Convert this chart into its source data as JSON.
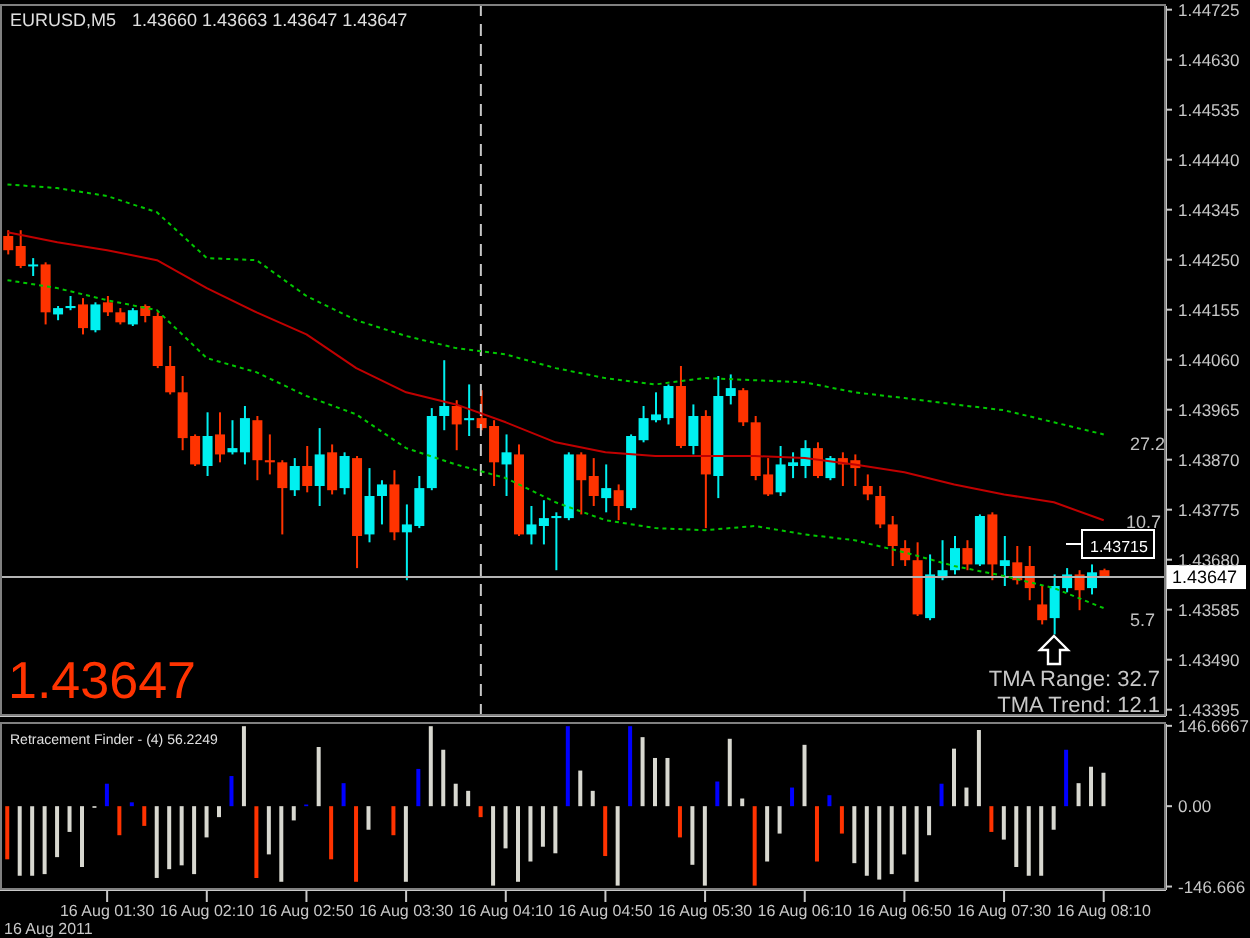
{
  "chart_data": [
    {
      "type": "candlestick",
      "title": "EURUSD,M5",
      "subtitle": "1.43660 1.43663 1.43647 1.43647",
      "x": [
        "2011-08-16T00:50",
        "2011-08-16T00:55",
        "2011-08-16T01:00",
        "2011-08-16T01:05",
        "2011-08-16T01:10",
        "2011-08-16T01:15",
        "2011-08-16T01:20",
        "2011-08-16T01:25",
        "2011-08-16T01:30",
        "2011-08-16T01:35",
        "2011-08-16T01:40",
        "2011-08-16T01:45",
        "2011-08-16T01:50",
        "2011-08-16T01:55",
        "2011-08-16T02:00",
        "2011-08-16T02:05",
        "2011-08-16T02:10",
        "2011-08-16T02:15",
        "2011-08-16T02:20",
        "2011-08-16T02:25",
        "2011-08-16T02:30",
        "2011-08-16T02:35",
        "2011-08-16T02:40",
        "2011-08-16T02:45",
        "2011-08-16T02:50",
        "2011-08-16T02:55",
        "2011-08-16T03:00",
        "2011-08-16T03:05",
        "2011-08-16T03:10",
        "2011-08-16T03:15",
        "2011-08-16T03:20",
        "2011-08-16T03:25",
        "2011-08-16T03:30",
        "2011-08-16T03:35",
        "2011-08-16T03:40",
        "2011-08-16T03:45",
        "2011-08-16T03:50",
        "2011-08-16T03:55",
        "2011-08-16T04:00",
        "2011-08-16T04:05",
        "2011-08-16T04:10",
        "2011-08-16T04:15",
        "2011-08-16T04:20",
        "2011-08-16T04:25",
        "2011-08-16T04:30",
        "2011-08-16T04:35",
        "2011-08-16T04:40",
        "2011-08-16T04:45",
        "2011-08-16T04:50",
        "2011-08-16T04:55",
        "2011-08-16T05:00",
        "2011-08-16T05:05",
        "2011-08-16T05:10",
        "2011-08-16T05:15",
        "2011-08-16T05:20",
        "2011-08-16T05:25",
        "2011-08-16T05:30",
        "2011-08-16T05:35",
        "2011-08-16T05:40",
        "2011-08-16T05:45",
        "2011-08-16T05:50",
        "2011-08-16T05:55",
        "2011-08-16T06:00",
        "2011-08-16T06:05",
        "2011-08-16T06:10",
        "2011-08-16T06:15",
        "2011-08-16T06:20",
        "2011-08-16T06:25",
        "2011-08-16T06:30",
        "2011-08-16T06:35",
        "2011-08-16T06:40",
        "2011-08-16T06:45",
        "2011-08-16T06:50",
        "2011-08-16T06:55",
        "2011-08-16T07:00",
        "2011-08-16T07:05",
        "2011-08-16T07:10",
        "2011-08-16T07:15",
        "2011-08-16T07:20",
        "2011-08-16T07:25",
        "2011-08-16T07:30",
        "2011-08-16T07:35",
        "2011-08-16T07:40",
        "2011-08-16T07:45",
        "2011-08-16T07:50",
        "2011-08-16T07:55",
        "2011-08-16T08:00",
        "2011-08-16T08:05",
        "2011-08-16T08:10"
      ],
      "ohlc": [
        [
          1.44295,
          1.44306,
          1.4426,
          1.44268
        ],
        [
          1.44276,
          1.44306,
          1.44234,
          1.44238
        ],
        [
          1.44238,
          1.44253,
          1.44219,
          1.44241
        ],
        [
          1.44241,
          1.44245,
          1.44127,
          1.4415
        ],
        [
          1.44146,
          1.44162,
          1.44135,
          1.44158
        ],
        [
          1.44158,
          1.44181,
          1.44154,
          1.44162
        ],
        [
          1.44165,
          1.44177,
          1.44108,
          1.4412
        ],
        [
          1.44116,
          1.44169,
          1.44112,
          1.44165
        ],
        [
          1.44169,
          1.44181,
          1.44143,
          1.4415
        ],
        [
          1.4415,
          1.44158,
          1.44127,
          1.44131
        ],
        [
          1.44127,
          1.44158,
          1.44124,
          1.44154
        ],
        [
          1.44162,
          1.44165,
          1.44131,
          1.44143
        ],
        [
          1.44143,
          1.4415,
          1.44044,
          1.44048
        ],
        [
          1.44048,
          1.44086,
          1.43994,
          1.43998
        ],
        [
          1.43998,
          1.44029,
          1.43888,
          1.43911
        ],
        [
          1.43915,
          1.43918,
          1.43858,
          1.43861
        ],
        [
          1.43858,
          1.4396,
          1.43839,
          1.43915
        ],
        [
          1.43918,
          1.4396,
          1.43865,
          1.4388
        ],
        [
          1.43884,
          1.43945,
          1.4388,
          1.43892
        ],
        [
          1.43884,
          1.43972,
          1.43861,
          1.43949
        ],
        [
          1.43945,
          1.43953,
          1.43831,
          1.43869
        ],
        [
          1.43869,
          1.43918,
          1.43842,
          1.43865
        ],
        [
          1.43865,
          1.43869,
          1.43728,
          1.43816
        ],
        [
          1.43812,
          1.43873,
          1.43801,
          1.43858
        ],
        [
          1.43858,
          1.43896,
          1.43808,
          1.4382
        ],
        [
          1.4382,
          1.4393,
          1.43782,
          1.4388
        ],
        [
          1.43884,
          1.43899,
          1.43804,
          1.43812
        ],
        [
          1.43816,
          1.43884,
          1.43804,
          1.43877
        ],
        [
          1.43873,
          1.43877,
          1.43664,
          1.43725
        ],
        [
          1.43728,
          1.43854,
          1.43713,
          1.43801
        ],
        [
          1.43801,
          1.43831,
          1.43747,
          1.43823
        ],
        [
          1.43823,
          1.4385,
          1.43717,
          1.43732
        ],
        [
          1.43732,
          1.43785,
          1.43641,
          1.43747
        ],
        [
          1.43744,
          1.43839,
          1.4374,
          1.43816
        ],
        [
          1.43816,
          1.43968,
          1.43812,
          1.43953
        ],
        [
          1.43953,
          1.44059,
          1.43926,
          1.43972
        ],
        [
          1.43972,
          1.43983,
          1.43888,
          1.43937
        ],
        [
          1.43945,
          1.44013,
          1.43915,
          1.43949
        ],
        [
          1.43949,
          1.44002,
          1.43926,
          1.4393
        ],
        [
          1.43934,
          1.43945,
          1.4382,
          1.43865
        ],
        [
          1.43861,
          1.43918,
          1.43801,
          1.43884
        ],
        [
          1.4388,
          1.43899,
          1.43725,
          1.43728
        ],
        [
          1.43728,
          1.43782,
          1.43709,
          1.43747
        ],
        [
          1.43744,
          1.43793,
          1.43709,
          1.43759
        ],
        [
          1.43759,
          1.4377,
          1.4366,
          1.43763
        ],
        [
          1.43759,
          1.43884,
          1.43755,
          1.4388
        ],
        [
          1.4388,
          1.43884,
          1.43766,
          1.43831
        ],
        [
          1.43839,
          1.43873,
          1.43782,
          1.43801
        ],
        [
          1.43797,
          1.43861,
          1.4377,
          1.43816
        ],
        [
          1.43812,
          1.43823,
          1.43755,
          1.43782
        ],
        [
          1.43778,
          1.43918,
          1.43774,
          1.43915
        ],
        [
          1.43907,
          1.43972,
          1.43903,
          1.43949
        ],
        [
          1.43945,
          1.43998,
          1.43941,
          1.43956
        ],
        [
          1.43949,
          1.44013,
          1.43937,
          1.4401
        ],
        [
          1.4401,
          1.44048,
          1.43892,
          1.43896
        ],
        [
          1.43896,
          1.43975,
          1.4388,
          1.43953
        ],
        [
          1.43953,
          1.43964,
          1.4374,
          1.43842
        ],
        [
          1.43839,
          1.44029,
          1.43797,
          1.43991
        ],
        [
          1.43991,
          1.44032,
          1.43975,
          1.44006
        ],
        [
          1.44002,
          1.44006,
          1.43934,
          1.43941
        ],
        [
          1.43941,
          1.43953,
          1.43831,
          1.43839
        ],
        [
          1.43842,
          1.43873,
          1.43801,
          1.43804
        ],
        [
          1.43808,
          1.43896,
          1.43801,
          1.43861
        ],
        [
          1.43858,
          1.43884,
          1.43835,
          1.43865
        ],
        [
          1.43858,
          1.43907,
          1.43835,
          1.43892
        ],
        [
          1.43892,
          1.43903,
          1.43835,
          1.43839
        ],
        [
          1.43835,
          1.43877,
          1.43831,
          1.43873
        ],
        [
          1.43873,
          1.43884,
          1.4382,
          1.43861
        ],
        [
          1.43869,
          1.4388,
          1.4382,
          1.43854
        ],
        [
          1.4382,
          1.43842,
          1.43793,
          1.43804
        ],
        [
          1.43801,
          1.4382,
          1.4374,
          1.43747
        ],
        [
          1.43747,
          1.43763,
          1.43668,
          1.43706
        ],
        [
          1.43702,
          1.43717,
          1.43668,
          1.43679
        ],
        [
          1.43679,
          1.43713,
          1.43573,
          1.43576
        ],
        [
          1.43569,
          1.4369,
          1.43565,
          1.43652
        ],
        [
          1.43645,
          1.43717,
          1.43641,
          1.4366
        ],
        [
          1.4366,
          1.43725,
          1.43652,
          1.43702
        ],
        [
          1.43702,
          1.43717,
          1.4366,
          1.43671
        ],
        [
          1.43671,
          1.43766,
          1.43668,
          1.43763
        ],
        [
          1.43766,
          1.4377,
          1.43641,
          1.43671
        ],
        [
          1.43668,
          1.43725,
          1.4363,
          1.43679
        ],
        [
          1.43675,
          1.43706,
          1.43633,
          1.43641
        ],
        [
          1.43668,
          1.43706,
          1.43603,
          1.43626
        ],
        [
          1.43595,
          1.4363,
          1.43557,
          1.43565
        ],
        [
          1.43569,
          1.43652,
          1.43538,
          1.4363
        ],
        [
          1.43626,
          1.43664,
          1.43618,
          1.43652
        ],
        [
          1.43652,
          1.4366,
          1.43584,
          1.43622
        ],
        [
          1.43626,
          1.43671,
          1.43614,
          1.43656
        ],
        [
          1.4366,
          1.43663,
          1.43647,
          1.43647
        ]
      ],
      "colors": [
        "#ff3300",
        "#ff3300",
        "#00f0f0",
        "#ff3300",
        "#00f0f0",
        "#00f0f0",
        "#ff3300",
        "#00f0f0",
        "#ff3300",
        "#ff3300",
        "#00f0f0",
        "#ff3300",
        "#ff3300",
        "#ff3300",
        "#ff3300",
        "#ff3300",
        "#00f0f0",
        "#ff3300",
        "#00f0f0",
        "#00f0f0",
        "#ff3300",
        "#ff3300",
        "#ff3300",
        "#00f0f0",
        "#ff3300",
        "#00f0f0",
        "#ff3300",
        "#00f0f0",
        "#ff3300",
        "#00f0f0",
        "#00f0f0",
        "#ff3300",
        "#00f0f0",
        "#00f0f0",
        "#00f0f0",
        "#00f0f0",
        "#ff3300",
        "#00f0f0",
        "#ff3300",
        "#ff3300",
        "#00f0f0",
        "#ff3300",
        "#00f0f0",
        "#00f0f0",
        "#00f0f0",
        "#00f0f0",
        "#ff3300",
        "#ff3300",
        "#00f0f0",
        "#ff3300",
        "#00f0f0",
        "#00f0f0",
        "#00f0f0",
        "#00f0f0",
        "#ff3300",
        "#00f0f0",
        "#ff3300",
        "#00f0f0",
        "#00f0f0",
        "#ff3300",
        "#ff3300",
        "#ff3300",
        "#00f0f0",
        "#00f0f0",
        "#00f0f0",
        "#ff3300",
        "#00f0f0",
        "#ff3300",
        "#ff3300",
        "#ff3300",
        "#ff3300",
        "#ff3300",
        "#ff3300",
        "#ff3300",
        "#00f0f0",
        "#00f0f0",
        "#00f0f0",
        "#ff3300",
        "#00f0f0",
        "#ff3300",
        "#00f0f0",
        "#ff3300",
        "#ff3300",
        "#ff3300",
        "#00f0f0",
        "#00f0f0",
        "#ff3300",
        "#00f0f0",
        "#ff3300"
      ],
      "series": [
        {
          "type": "line",
          "color": "#c00000",
          "line_style": "solid",
          "x": [
            "2011-08-16T00:50",
            "2011-08-16T01:10",
            "2011-08-16T01:30",
            "2011-08-16T01:50",
            "2011-08-16T02:10",
            "2011-08-16T02:30",
            "2011-08-16T02:50",
            "2011-08-16T03:10",
            "2011-08-16T03:30",
            "2011-08-16T03:50",
            "2011-08-16T04:10",
            "2011-08-16T04:30",
            "2011-08-16T04:50",
            "2011-08-16T05:10",
            "2011-08-16T05:30",
            "2011-08-16T05:50",
            "2011-08-16T06:10",
            "2011-08-16T06:30",
            "2011-08-16T06:50",
            "2011-08-16T07:10",
            "2011-08-16T07:30",
            "2011-08-16T07:50",
            "2011-08-16T08:10"
          ],
          "values": [
            1.44302,
            1.44283,
            1.44268,
            1.44249,
            1.44196,
            1.4415,
            1.44108,
            1.44044,
            1.43998,
            1.43975,
            1.43941,
            1.43903,
            1.43884,
            1.43877,
            1.43877,
            1.43877,
            1.43873,
            1.43861,
            1.43846,
            1.43823,
            1.43804,
            1.43789,
            1.43755
          ]
        },
        {
          "type": "line",
          "color": "#00c800",
          "line_style": "dotted",
          "x": [
            "2011-08-16T00:50",
            "2011-08-16T01:10",
            "2011-08-16T01:30",
            "2011-08-16T01:50",
            "2011-08-16T02:10",
            "2011-08-16T02:30",
            "2011-08-16T02:50",
            "2011-08-16T03:10",
            "2011-08-16T03:30",
            "2011-08-16T03:50",
            "2011-08-16T04:10",
            "2011-08-16T04:30",
            "2011-08-16T04:50",
            "2011-08-16T05:10",
            "2011-08-16T05:30",
            "2011-08-16T05:50",
            "2011-08-16T06:10",
            "2011-08-16T06:30",
            "2011-08-16T06:50",
            "2011-08-16T07:10",
            "2011-08-16T07:30",
            "2011-08-16T07:50",
            "2011-08-16T08:10"
          ],
          "values": [
            1.44393,
            1.44386,
            1.44371,
            1.4434,
            1.44253,
            1.44249,
            1.44181,
            1.44135,
            1.44105,
            1.44082,
            1.4407,
            1.44044,
            1.44025,
            1.44013,
            1.44025,
            1.44021,
            1.44017,
            1.43998,
            1.43987,
            1.43975,
            1.43964,
            1.43941,
            1.43918
          ]
        },
        {
          "type": "line",
          "color": "#00c800",
          "line_style": "dotted",
          "x": [
            "2011-08-16T00:50",
            "2011-08-16T01:10",
            "2011-08-16T01:30",
            "2011-08-16T01:50",
            "2011-08-16T02:10",
            "2011-08-16T02:30",
            "2011-08-16T02:50",
            "2011-08-16T03:10",
            "2011-08-16T03:30",
            "2011-08-16T03:50",
            "2011-08-16T04:10",
            "2011-08-16T04:30",
            "2011-08-16T04:50",
            "2011-08-16T05:10",
            "2011-08-16T05:30",
            "2011-08-16T05:50",
            "2011-08-16T06:10",
            "2011-08-16T06:30",
            "2011-08-16T06:50",
            "2011-08-16T07:10",
            "2011-08-16T07:30",
            "2011-08-16T07:50",
            "2011-08-16T08:10"
          ],
          "values": [
            1.44211,
            1.44196,
            1.44173,
            1.44154,
            1.44063,
            1.44036,
            1.43991,
            1.43956,
            1.43892,
            1.43861,
            1.43835,
            1.43789,
            1.43755,
            1.4374,
            1.43736,
            1.43744,
            1.43728,
            1.43717,
            1.43694,
            1.43668,
            1.43649,
            1.43626,
            1.43588
          ]
        }
      ],
      "xlim": [
        "2011-08-16T00:47",
        "2011-08-16T08:35"
      ],
      "ylim": [
        1.43383,
        1.44732
      ],
      "yticks": [
        1.44725,
        {
          "value": 1.4463,
          "label": "1.44630"
        },
        1.44535,
        {
          "value": 1.4444,
          "label": "1.44440"
        },
        1.44345,
        {
          "value": 1.4425,
          "label": "1.44250"
        },
        1.44155,
        {
          "value": 1.4406,
          "label": "1.44060"
        },
        1.43965,
        {
          "value": 1.4387,
          "label": "1.43870"
        },
        1.43775,
        {
          "value": 1.4368,
          "label": "1.43680"
        },
        1.43585,
        {
          "value": 1.4349,
          "label": "1.43490"
        },
        1.43395
      ],
      "tick_labels": "y",
      "ref_lines": [
        {
          "axis": "y",
          "value": 1.43647,
          "label": "1.43647",
          "color": "#b4b4b4",
          "line_style": "solid"
        },
        {
          "axis": "x",
          "value": "2011-08-16T04:00",
          "color": "#c8c8c8",
          "line_style": "dashed"
        }
      ],
      "annotations": [
        "27.2",
        "10.7",
        "5.7",
        "1.43715",
        "1.43647",
        "TMA Range: 32.7",
        "TMA Trend: 12.1"
      ]
    },
    {
      "type": "bar",
      "title": "Retracement Finder - (4) 56.2249",
      "x": [
        "2011-08-16T00:50",
        "2011-08-16T00:55",
        "2011-08-16T01:00",
        "2011-08-16T01:05",
        "2011-08-16T01:10",
        "2011-08-16T01:15",
        "2011-08-16T01:20",
        "2011-08-16T01:25",
        "2011-08-16T01:30",
        "2011-08-16T01:35",
        "2011-08-16T01:40",
        "2011-08-16T01:45",
        "2011-08-16T01:50",
        "2011-08-16T01:55",
        "2011-08-16T02:00",
        "2011-08-16T02:05",
        "2011-08-16T02:10",
        "2011-08-16T02:15",
        "2011-08-16T02:20",
        "2011-08-16T02:25",
        "2011-08-16T02:30",
        "2011-08-16T02:35",
        "2011-08-16T02:40",
        "2011-08-16T02:45",
        "2011-08-16T02:50",
        "2011-08-16T02:55",
        "2011-08-16T03:00",
        "2011-08-16T03:05",
        "2011-08-16T03:10",
        "2011-08-16T03:15",
        "2011-08-16T03:20",
        "2011-08-16T03:25",
        "2011-08-16T03:30",
        "2011-08-16T03:35",
        "2011-08-16T03:40",
        "2011-08-16T03:45",
        "2011-08-16T03:50",
        "2011-08-16T03:55",
        "2011-08-16T04:00",
        "2011-08-16T04:05",
        "2011-08-16T04:10",
        "2011-08-16T04:15",
        "2011-08-16T04:20",
        "2011-08-16T04:25",
        "2011-08-16T04:30",
        "2011-08-16T04:35",
        "2011-08-16T04:40",
        "2011-08-16T04:45",
        "2011-08-16T04:50",
        "2011-08-16T04:55",
        "2011-08-16T05:00",
        "2011-08-16T05:05",
        "2011-08-16T05:10",
        "2011-08-16T05:15",
        "2011-08-16T05:20",
        "2011-08-16T05:25",
        "2011-08-16T05:30",
        "2011-08-16T05:35",
        "2011-08-16T05:40",
        "2011-08-16T05:45",
        "2011-08-16T05:50",
        "2011-08-16T05:55",
        "2011-08-16T06:00",
        "2011-08-16T06:05",
        "2011-08-16T06:10",
        "2011-08-16T06:15",
        "2011-08-16T06:20",
        "2011-08-16T06:25",
        "2011-08-16T06:30",
        "2011-08-16T06:35",
        "2011-08-16T06:40",
        "2011-08-16T06:45",
        "2011-08-16T06:50",
        "2011-08-16T06:55",
        "2011-08-16T07:00",
        "2011-08-16T07:05",
        "2011-08-16T07:10",
        "2011-08-16T07:15",
        "2011-08-16T07:20",
        "2011-08-16T07:25",
        "2011-08-16T07:30",
        "2011-08-16T07:35",
        "2011-08-16T07:40",
        "2011-08-16T07:45",
        "2011-08-16T07:50",
        "2011-08-16T07:55",
        "2011-08-16T08:00",
        "2011-08-16T08:05",
        "2011-08-16T08:10"
      ],
      "values": [
        -97,
        -127,
        -127,
        -124,
        -93,
        -47,
        -111,
        -3,
        41,
        -53,
        7,
        -36,
        -131,
        -115,
        -108,
        -124,
        -57,
        -20,
        55,
        146,
        -131,
        -88,
        -138,
        -26,
        3,
        108,
        -97,
        42,
        -138,
        -43,
        null,
        -53,
        -138,
        68,
        146,
        103,
        41,
        28,
        -20,
        -145,
        -77,
        -138,
        -101,
        -74,
        -86,
        146,
        65,
        28,
        -91,
        -145,
        146,
        126,
        88,
        88,
        -57,
        -107,
        -145,
        45,
        123,
        14,
        -145,
        -101,
        -50,
        34,
        112,
        -101,
        20,
        -50,
        -104,
        -127,
        -134,
        -124,
        -88,
        -138,
        -53,
        41,
        105,
        34,
        139,
        -47,
        -61,
        -111,
        -127,
        -127,
        -43,
        103,
        42,
        72,
        61
      ],
      "colors": [
        "#ff3300",
        "#d8d8d0",
        "#d8d8d0",
        "#d8d8d0",
        "#d8d8d0",
        "#d8d8d0",
        "#d8d8d0",
        "#d8d8d0",
        "#0000ff",
        "#ff3300",
        "#0000ff",
        "#ff3300",
        "#d8d8d0",
        "#d8d8d0",
        "#d8d8d0",
        "#d8d8d0",
        "#d8d8d0",
        "#d8d8d0",
        "#0000ff",
        "#d8d8d0",
        "#ff3300",
        "#d8d8d0",
        "#d8d8d0",
        "#d8d8d0",
        "#0000ff",
        "#d8d8d0",
        "#ff3300",
        "#0000ff",
        "#ff3300",
        "#d8d8d0",
        "#d8d8d0",
        "#ff3300",
        "#d8d8d0",
        "#0000ff",
        "#d8d8d0",
        "#d8d8d0",
        "#d8d8d0",
        "#d8d8d0",
        "#ff3300",
        "#d8d8d0",
        "#d8d8d0",
        "#d8d8d0",
        "#d8d8d0",
        "#d8d8d0",
        "#d8d8d0",
        "#0000ff",
        "#d8d8d0",
        "#d8d8d0",
        "#ff3300",
        "#d8d8d0",
        "#0000ff",
        "#d8d8d0",
        "#d8d8d0",
        "#d8d8d0",
        "#ff3300",
        "#d8d8d0",
        "#d8d8d0",
        "#0000ff",
        "#d8d8d0",
        "#d8d8d0",
        "#ff3300",
        "#d8d8d0",
        "#d8d8d0",
        "#0000ff",
        "#d8d8d0",
        "#ff3300",
        "#0000ff",
        "#ff3300",
        "#d8d8d0",
        "#d8d8d0",
        "#d8d8d0",
        "#d8d8d0",
        "#d8d8d0",
        "#d8d8d0",
        "#d8d8d0",
        "#0000ff",
        "#d8d8d0",
        "#d8d8d0",
        "#d8d8d0",
        "#ff3300",
        "#d8d8d0",
        "#d8d8d0",
        "#d8d8d0",
        "#d8d8d0",
        "#d8d8d0",
        "#0000ff",
        "#d8d8d0",
        "#d8d8d0",
        "#d8d8d0"
      ],
      "xlim": [
        "2011-08-16T00:47",
        "2011-08-16T08:35"
      ],
      "annotations": [
        "16 Aug 2011"
      ],
      "xticks": [
        {
          "value": "2011-08-16T01:30",
          "label": "16 Aug 01:30"
        },
        {
          "value": "2011-08-16T02:10",
          "label": "16 Aug 02:10"
        },
        {
          "value": "2011-08-16T02:50",
          "label": "16 Aug 02:50"
        },
        {
          "value": "2011-08-16T03:30",
          "label": "16 Aug 03:30"
        },
        {
          "value": "2011-08-16T04:10",
          "label": "16 Aug 04:10"
        },
        {
          "value": "2011-08-16T04:50",
          "label": "16 Aug 04:50"
        },
        {
          "value": "2011-08-16T05:30",
          "label": "16 Aug 05:30"
        },
        {
          "value": "2011-08-16T06:10",
          "label": "16 Aug 06:10"
        },
        {
          "value": "2011-08-16T06:50",
          "label": "16 Aug 06:50"
        },
        {
          "value": "2011-08-16T07:30",
          "label": "16 Aug 07:30"
        },
        {
          "value": "2011-08-16T08:10",
          "label": "16 Aug 08:10"
        }
      ],
      "ylim": [
        -153,
        150
      ],
      "yticks": [
        146.6667,
        {
          "value": 0,
          "label": "0.00"
        },
        -146.666
      ]
    }
  ]
}
